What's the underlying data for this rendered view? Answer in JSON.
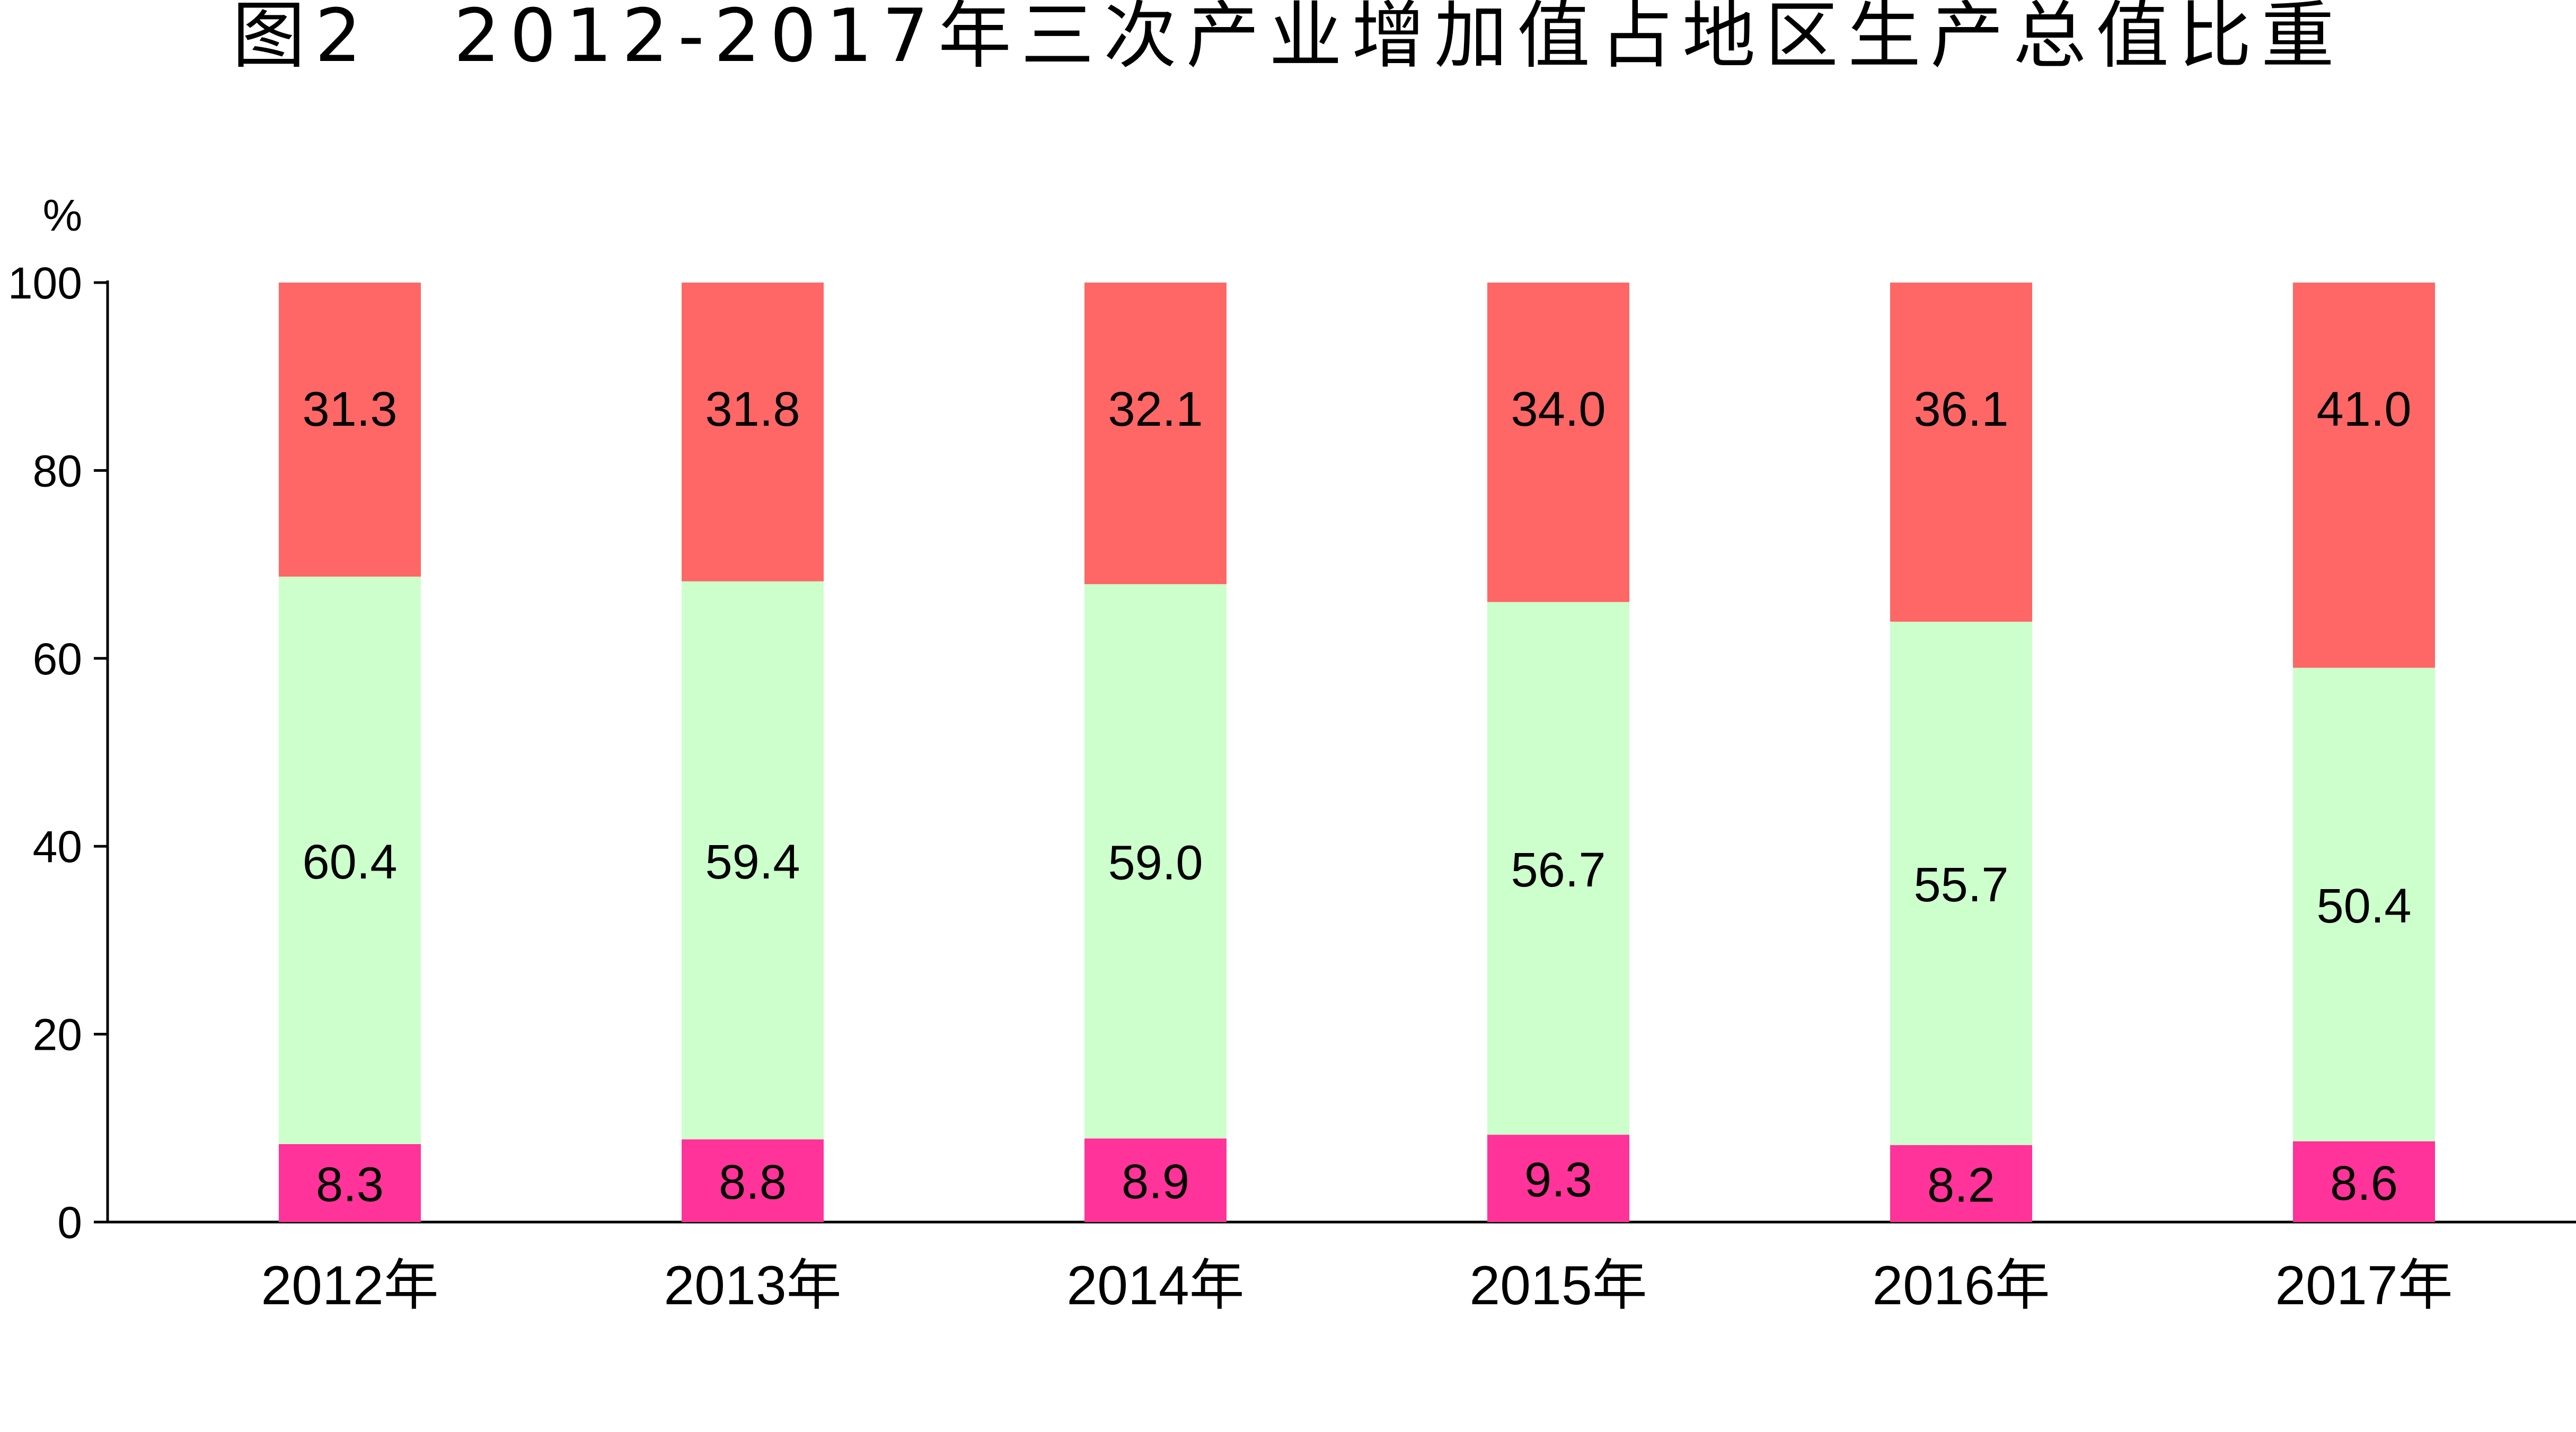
{
  "chart_data": {
    "type": "bar",
    "stacked": true,
    "title": "图2　2012-2017年三次产业增加值占地区生产总值比重",
    "ylabel": "%",
    "ylim": [
      0,
      100
    ],
    "yticks": [
      "0",
      "20",
      "40",
      "60",
      "80",
      "100"
    ],
    "categories": [
      "2012年",
      "2013年",
      "2014年",
      "2015年",
      "2016年",
      "2017年"
    ],
    "series": [
      {
        "color": "#ff3399",
        "values": [
          8.3,
          8.8,
          8.9,
          9.3,
          8.2,
          8.6
        ],
        "labels": [
          "8.3",
          "8.8",
          "8.9",
          "9.3",
          "8.2",
          "8.6"
        ]
      },
      {
        "color": "#ccffcc",
        "values": [
          60.4,
          59.4,
          59.0,
          56.7,
          55.7,
          50.4
        ],
        "labels": [
          "60.4",
          "59.4",
          "59.0",
          "56.7",
          "55.7",
          "50.4"
        ]
      },
      {
        "color": "#ff6666",
        "values": [
          31.3,
          31.8,
          32.1,
          34.0,
          36.1,
          41.0
        ],
        "labels": [
          "31.3",
          "31.8",
          "32.1",
          "34.0",
          "36.1",
          "41.0"
        ]
      }
    ],
    "grid": false,
    "legend": "none"
  }
}
